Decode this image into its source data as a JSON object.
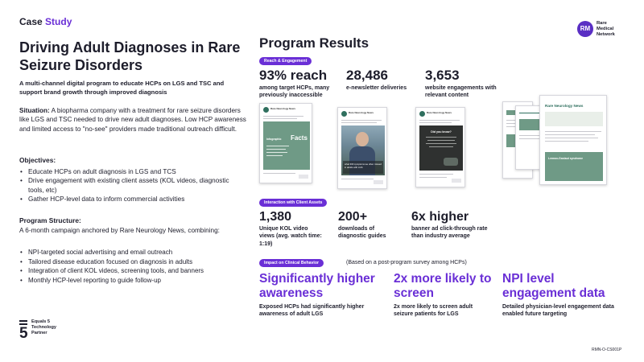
{
  "header": {
    "case_label": "Case",
    "case_accent": "Study"
  },
  "left": {
    "title": "Driving Adult Diagnoses in Rare Seizure Disorders",
    "subtitle": "A multi-channel digital program to educate HCPs on LGS and TSC and support brand growth through improved diagnosis",
    "situation_label": "Situation:",
    "situation_text": " A biopharma company with a treatment for rare seizure disorders like LGS and TSC needed to drive new adult diagnoses. Low HCP awareness and limited access to \"no-see\" providers made traditional outreach difficult.",
    "objectives_heading": "Objectives:",
    "objectives": [
      "Educate HCPs on adult diagnosis in LGS and TCS",
      "Drive engagement with existing client assets (KOL videos, diagnostic tools, etc)",
      "Gather HCP-level data to inform commercial activities"
    ],
    "structure_heading": "Program Structure:",
    "structure_intro": "A 6-month campaign anchored by Rare Neurology News, combining:",
    "structure_items": [
      "NPI-targeted social advertising and email outreach",
      "Tailored disease education focused on diagnosis in adults",
      "Integration of client KOL videos, screening tools, and banners",
      "Monthly HCP-level reporting to guide follow-up"
    ],
    "partner_lines": [
      "Equals 5",
      "Technology",
      "Partner"
    ]
  },
  "logo": {
    "mark": "RM",
    "lines": [
      "Rare",
      "Medical",
      "Network"
    ]
  },
  "results": {
    "title": "Program Results",
    "reach_pill": "Reach & Engagement",
    "reach_stats": [
      {
        "value": "93% reach",
        "desc": "among target HCPs, many previously inaccessible"
      },
      {
        "value": "28,486",
        "desc": "e-newsletter deliveries"
      },
      {
        "value": "3,653",
        "desc": "website engagements with relevant content"
      }
    ],
    "client_pill": "Interaction with Client Assets",
    "client_stats": [
      {
        "value": "1,380",
        "desc": "Unique KOL video views (avg. watch time: 1:19)"
      },
      {
        "value": "200+",
        "desc": "downloads of diagnostic guides"
      },
      {
        "value": "6x higher",
        "desc": "banner ad click-through rate than industry average"
      }
    ],
    "impact_pill": "Impact on Clinical Behavior",
    "survey_note": "(Based on a post-program survey among HCPs)",
    "impact_stats": [
      {
        "value": "Significantly higher awareness",
        "desc": "Exposed HCPs had significantly higher awareness of adult LGS"
      },
      {
        "value": "2x more likely to screen",
        "desc": "2x more likely to screen adult seizure patients for LGS"
      },
      {
        "value": "NPI level engagement data",
        "desc": "Detailed physician-level engagement data enabled future targeting"
      }
    ]
  },
  "creatives": {
    "ad_account": "Rare Neurology News",
    "ad1_panel_title": "Infographic",
    "ad1_facts": "Facts",
    "ad2_caption": "what 300 symptoms we often missed in adults with LGS",
    "ad3_question": "Did you know?",
    "newsletter_title": "Rare Neurology News",
    "newsletter_tile": "Lennox-Gastaut syndrome"
  },
  "footer": {
    "doc_code": "RMN-O-CS001P"
  },
  "colors": {
    "accent": "#6a2fd6",
    "text": "#1d1d2b",
    "ad_green": "#6f9a86",
    "logo_purple": "#5a2fc4"
  }
}
